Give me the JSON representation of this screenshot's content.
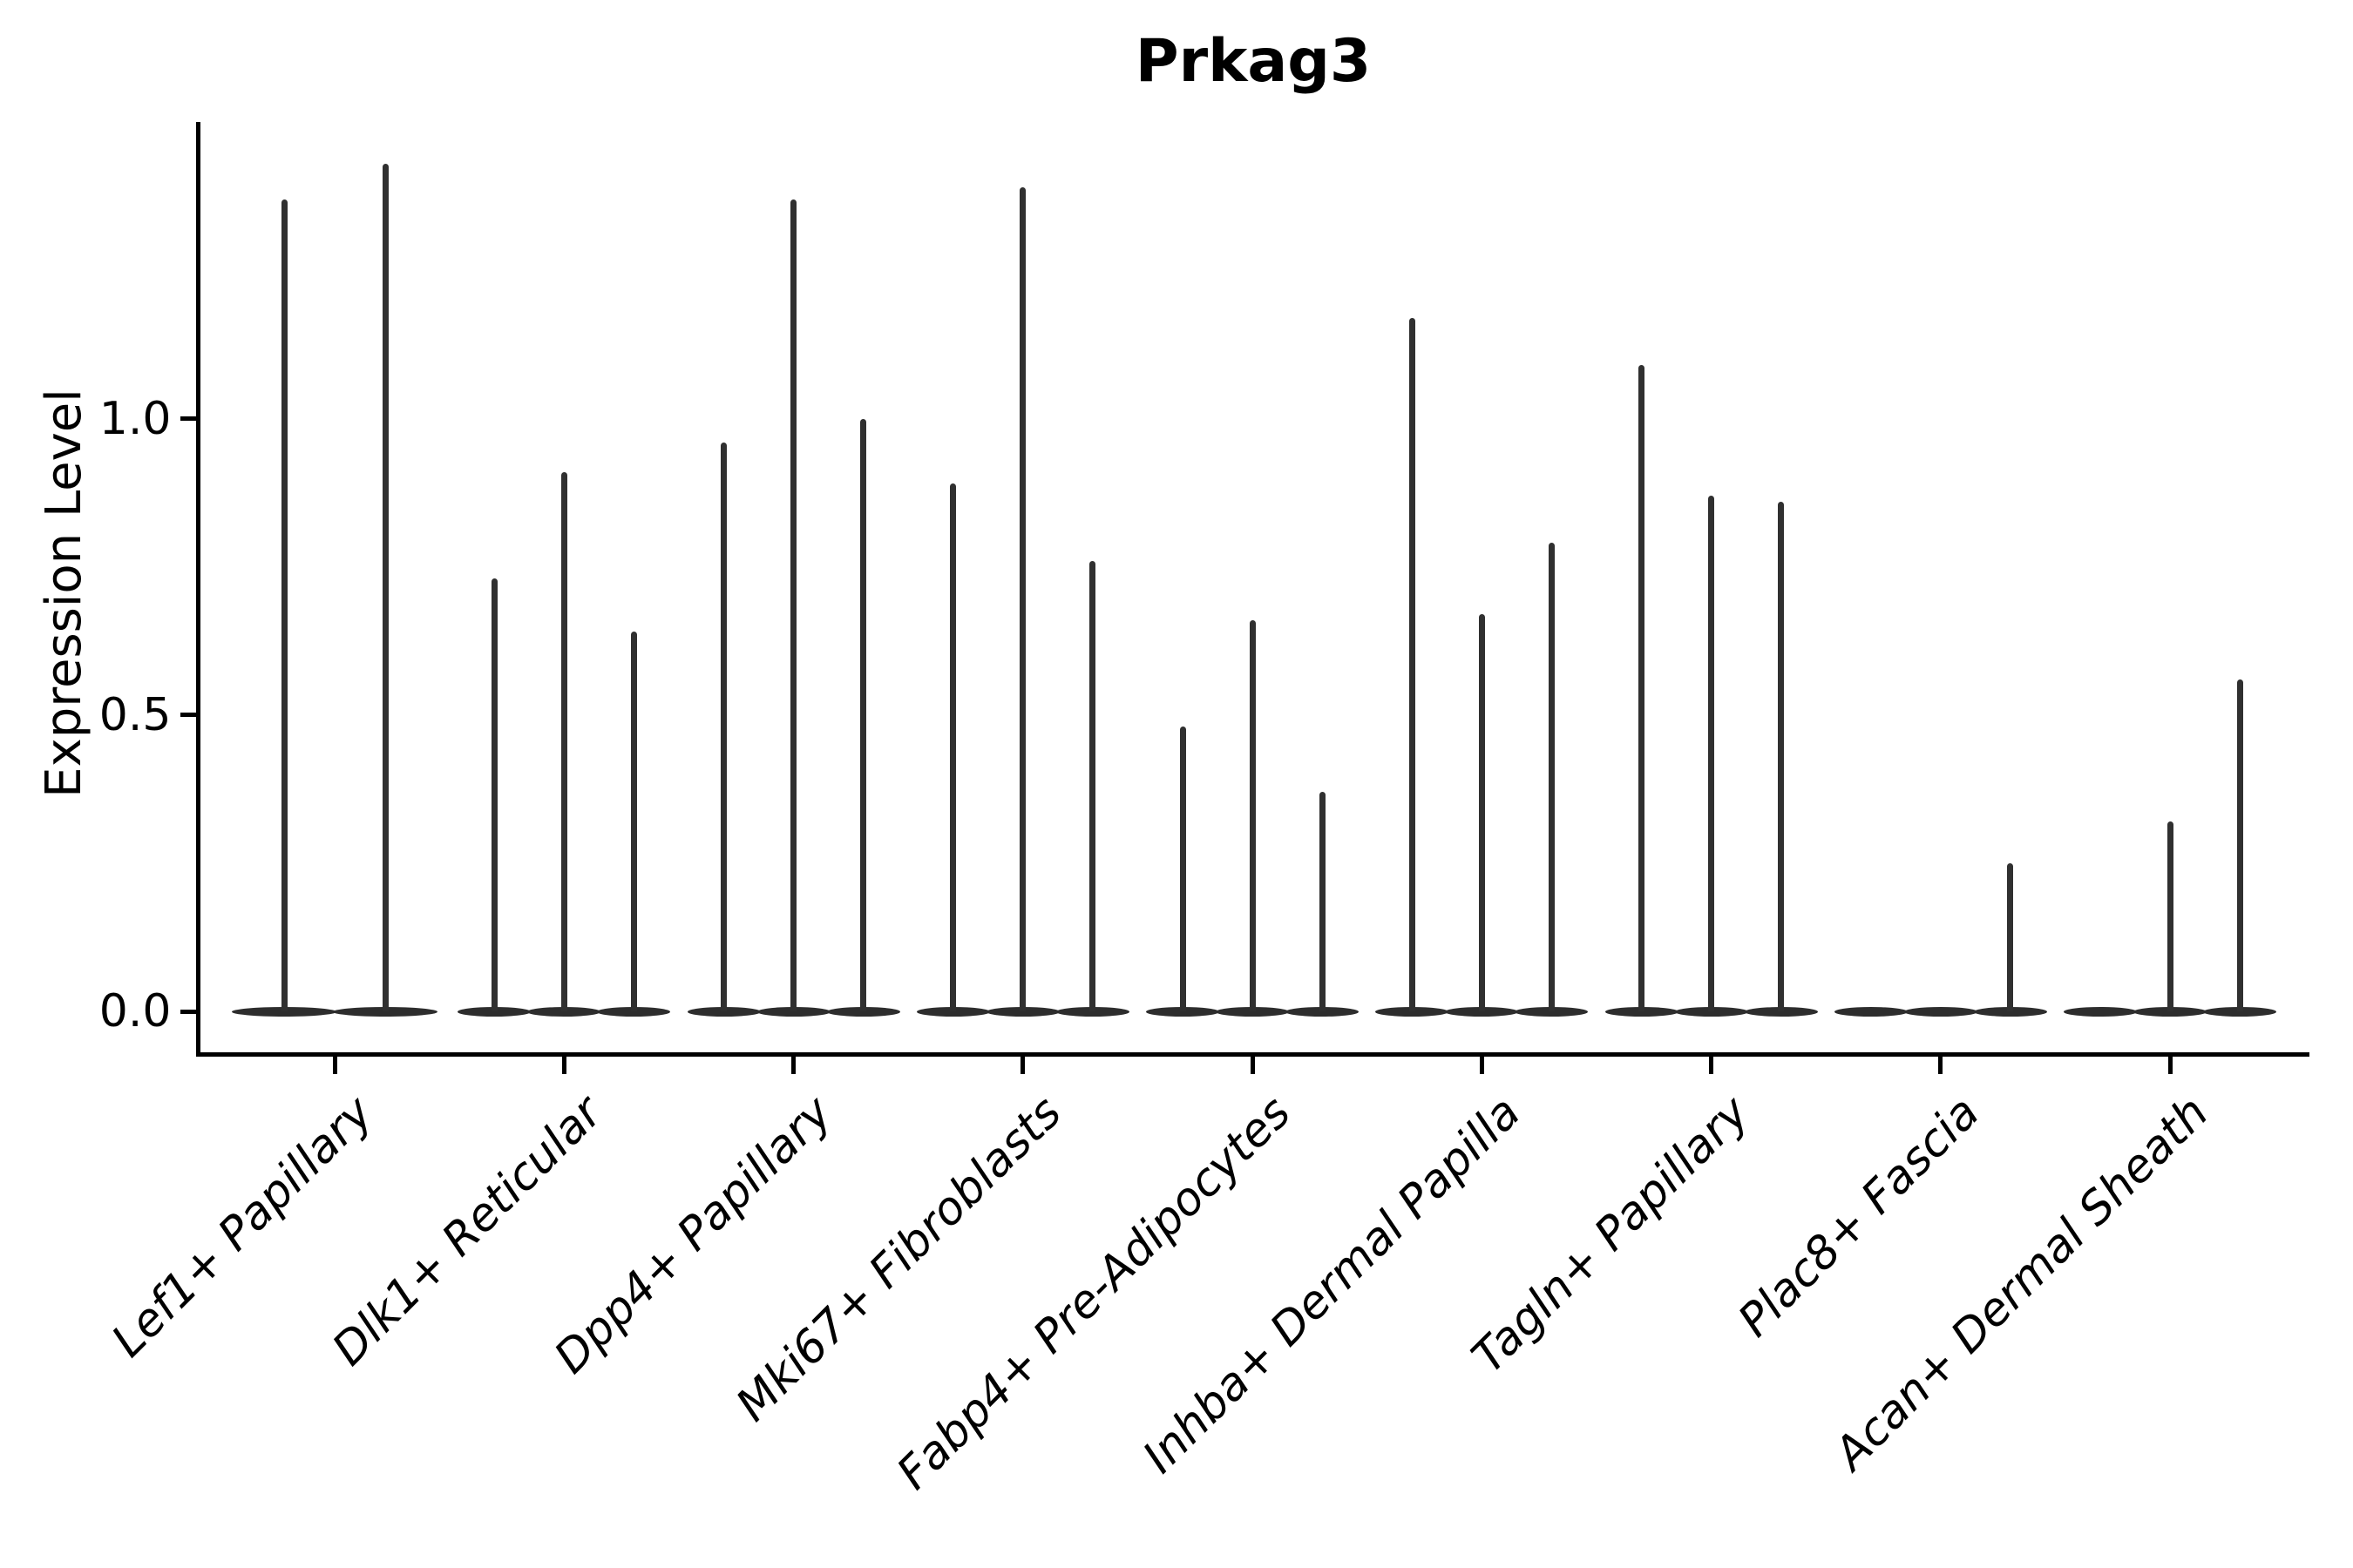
{
  "figure": {
    "title": "Prkag3"
  },
  "y_axis": {
    "label": "Expression Level",
    "tick_labels": [
      "0.0",
      "0.5",
      "1.0"
    ],
    "tick_values": [
      0.0,
      0.5,
      1.0
    ]
  },
  "x_axis": {
    "categories": [
      "Lef1+ Papillary",
      "Dlk1+ Reticular",
      "Dpp4+ Papillary",
      "Mki67+ Fibroblasts",
      "Fabp4+ Pre-Adipocytes",
      "Inhba+ Dermal Papilla",
      "Tagln+ Papillary",
      "Plac8+ Fascia",
      "Acan+ Dermal Sheath"
    ]
  },
  "chart_data": {
    "type": "violin",
    "title": "Prkag3",
    "xlabel": "",
    "ylabel": "Expression Level",
    "ylim": [
      -0.07,
      1.57
    ],
    "yticks": [
      0.0,
      0.5,
      1.0
    ],
    "grid": false,
    "legend": "none",
    "categories": [
      "Lef1+ Papillary",
      "Dlk1+ Reticular",
      "Dpp4+ Papillary",
      "Mki67+ Fibroblasts",
      "Fabp4+ Pre-Adipocytes",
      "Inhba+ Dermal Papilla",
      "Tagln+ Papillary",
      "Plac8+ Fascia",
      "Acan+ Dermal Sheath"
    ],
    "description": "Violin plot of Prkag3 expression; each category holds 2-3 near-zero violins whose density collapses to a flat blob at 0 with a thin spike to the maximum expression value.",
    "violins": [
      {
        "category": "Lef1+ Papillary",
        "max_values": [
          1.37,
          1.43
        ]
      },
      {
        "category": "Dlk1+ Reticular",
        "max_values": [
          0.73,
          0.91,
          0.64
        ]
      },
      {
        "category": "Dpp4+ Papillary",
        "max_values": [
          0.96,
          1.37,
          1.0
        ]
      },
      {
        "category": "Mki67+ Fibroblasts",
        "max_values": [
          0.89,
          1.39,
          0.76
        ]
      },
      {
        "category": "Fabp4+ Pre-Adipocytes",
        "max_values": [
          0.48,
          0.66,
          0.37
        ]
      },
      {
        "category": "Inhba+ Dermal Papilla",
        "max_values": [
          1.17,
          0.67,
          0.79
        ]
      },
      {
        "category": "Tagln+ Papillary",
        "max_values": [
          1.09,
          0.87,
          0.86
        ]
      },
      {
        "category": "Plac8+ Fascia",
        "max_values": [
          0,
          0,
          0.25
        ]
      },
      {
        "category": "Acan+ Dermal Sheath",
        "max_values": [
          0,
          0.32,
          0.56
        ]
      }
    ]
  }
}
